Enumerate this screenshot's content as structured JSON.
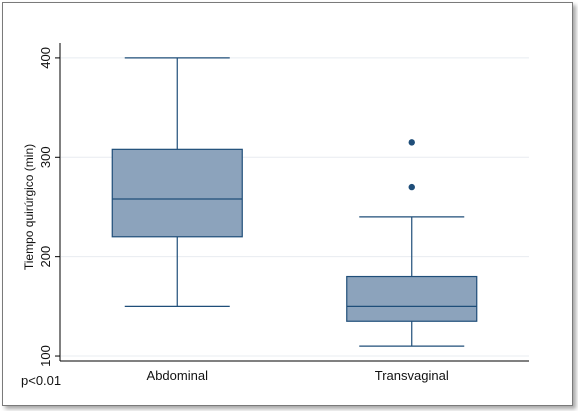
{
  "chart_data": {
    "type": "box",
    "ylabel": "Tiempo quirúrgico (min)",
    "xlabel": "",
    "ylim": [
      95,
      415
    ],
    "yticks": [
      100,
      200,
      300,
      400
    ],
    "grid": true,
    "categories": [
      "Abdominal",
      "Transvaginal"
    ],
    "boxes": [
      {
        "category": "Abdominal",
        "whisker_low": 150,
        "q1": 220,
        "median": 258,
        "q3": 308,
        "whisker_high": 400,
        "outliers": []
      },
      {
        "category": "Transvaginal",
        "whisker_low": 110,
        "q1": 135,
        "median": 150,
        "q3": 180,
        "whisker_high": 240,
        "outliers": [
          270,
          315
        ]
      }
    ],
    "note": "p<0.01",
    "colors": {
      "box_fill": "#8ca3bc",
      "box_line": "#1f4e79",
      "outlier": "#1f4e79",
      "grid": "#e8ecf0",
      "axis": "#000000"
    }
  }
}
